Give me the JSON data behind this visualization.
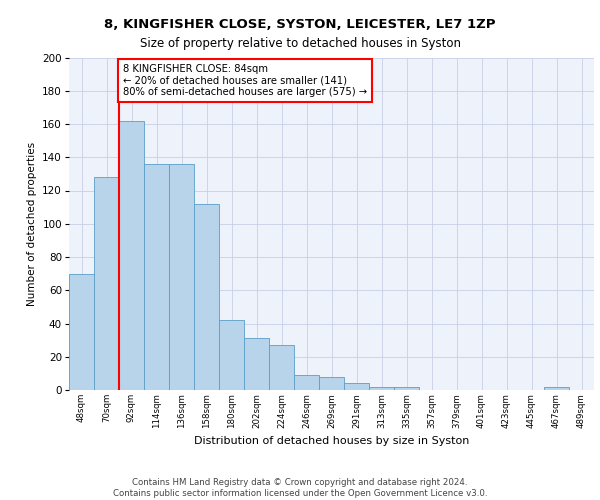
{
  "title1": "8, KINGFISHER CLOSE, SYSTON, LEICESTER, LE7 1ZP",
  "title2": "Size of property relative to detached houses in Syston",
  "xlabel": "Distribution of detached houses by size in Syston",
  "ylabel": "Number of detached properties",
  "footnote": "Contains HM Land Registry data © Crown copyright and database right 2024.\nContains public sector information licensed under the Open Government Licence v3.0.",
  "bar_labels": [
    "48sqm",
    "70sqm",
    "92sqm",
    "114sqm",
    "136sqm",
    "158sqm",
    "180sqm",
    "202sqm",
    "224sqm",
    "246sqm",
    "269sqm",
    "291sqm",
    "313sqm",
    "335sqm",
    "357sqm",
    "379sqm",
    "401sqm",
    "423sqm",
    "445sqm",
    "467sqm",
    "489sqm"
  ],
  "bar_values": [
    70,
    128,
    162,
    136,
    136,
    112,
    42,
    31,
    27,
    9,
    8,
    4,
    2,
    2,
    0,
    0,
    0,
    0,
    0,
    2,
    0
  ],
  "bar_color": "#b8d4ea",
  "bar_edge_color": "#5a9dc8",
  "annotation_text": "8 KINGFISHER CLOSE: 84sqm\n← 20% of detached houses are smaller (141)\n80% of semi-detached houses are larger (575) →",
  "annotation_box_color": "white",
  "annotation_box_edge": "red",
  "vline_x": 1.5,
  "vline_color": "red",
  "ylim": [
    0,
    200
  ],
  "yticks": [
    0,
    20,
    40,
    60,
    80,
    100,
    120,
    140,
    160,
    180,
    200
  ],
  "bg_color": "#eef2fa",
  "grid_color": "#c8d0e8"
}
